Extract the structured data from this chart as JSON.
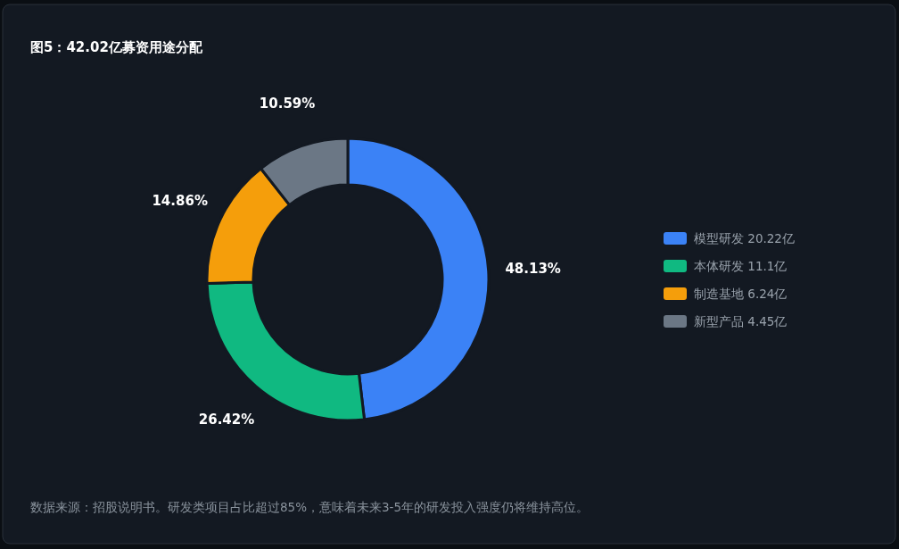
{
  "chart_data": {
    "type": "donut",
    "title": "图5：42.02亿募资用途分配",
    "categories": [
      "模型研发 20.22亿",
      "本体研发 11.1亿",
      "制造基地 6.24亿",
      "新型产品 4.45亿"
    ],
    "values": [
      48.13,
      26.42,
      14.86,
      10.59
    ],
    "colors": [
      "#3b82f6",
      "#10b981",
      "#f59e0b",
      "#6b7785"
    ],
    "value_labels": [
      "48.13%",
      "26.42%",
      "14.86%",
      "10.59%"
    ],
    "legend": "right",
    "annotations": [
      "数据来源：招股说明书。研发类项目占比超过85%，意味着未来3-5年的研发投入强度仍将维持高位。"
    ]
  }
}
